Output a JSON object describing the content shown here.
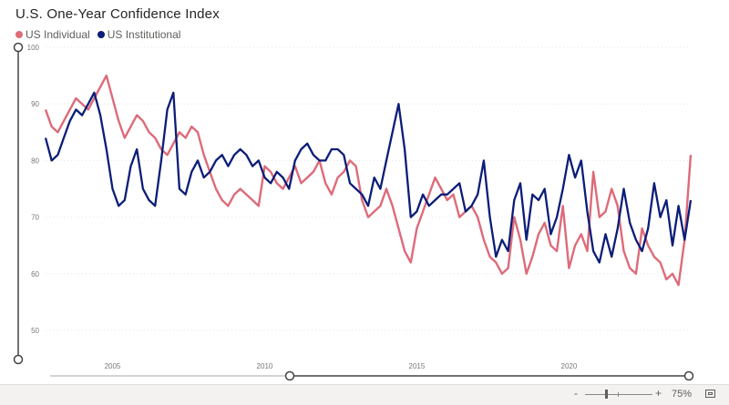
{
  "chart_data": {
    "type": "line",
    "title": "U.S. One-Year Confidence Index",
    "xlabel": "",
    "ylabel": "",
    "x_range": [
      2002.8,
      2024.0
    ],
    "xticks": [
      2005,
      2010,
      2015,
      2020
    ],
    "ylim": [
      45,
      100
    ],
    "yticks": [
      50,
      60,
      70,
      80,
      90,
      100
    ],
    "grid": true,
    "legend_position": "top-left",
    "series": [
      {
        "name": "US Individual",
        "color": "#dd6b7a",
        "x": [
          2002.8,
          2003.0,
          2003.2,
          2003.4,
          2003.6,
          2003.8,
          2004.0,
          2004.2,
          2004.4,
          2004.6,
          2004.8,
          2005.0,
          2005.2,
          2005.4,
          2005.6,
          2005.8,
          2006.0,
          2006.2,
          2006.4,
          2006.6,
          2006.8,
          2007.0,
          2007.2,
          2007.4,
          2007.6,
          2007.8,
          2008.0,
          2008.2,
          2008.4,
          2008.6,
          2008.8,
          2009.0,
          2009.2,
          2009.4,
          2009.6,
          2009.8,
          2010.0,
          2010.2,
          2010.4,
          2010.6,
          2010.8,
          2011.0,
          2011.2,
          2011.4,
          2011.6,
          2011.8,
          2012.0,
          2012.2,
          2012.4,
          2012.6,
          2012.8,
          2013.0,
          2013.2,
          2013.4,
          2013.6,
          2013.8,
          2014.0,
          2014.2,
          2014.4,
          2014.6,
          2014.8,
          2015.0,
          2015.2,
          2015.4,
          2015.6,
          2015.8,
          2016.0,
          2016.2,
          2016.4,
          2016.6,
          2016.8,
          2017.0,
          2017.2,
          2017.4,
          2017.6,
          2017.8,
          2018.0,
          2018.2,
          2018.4,
          2018.6,
          2018.8,
          2019.0,
          2019.2,
          2019.4,
          2019.6,
          2019.8,
          2020.0,
          2020.2,
          2020.4,
          2020.6,
          2020.8,
          2021.0,
          2021.2,
          2021.4,
          2021.6,
          2021.8,
          2022.0,
          2022.2,
          2022.4,
          2022.6,
          2022.8,
          2023.0,
          2023.2,
          2023.4,
          2023.6,
          2023.8,
          2024.0
        ],
        "values": [
          89,
          86,
          85,
          87,
          89,
          91,
          90,
          89,
          91,
          93,
          95,
          91,
          87,
          84,
          86,
          88,
          87,
          85,
          84,
          82,
          81,
          83,
          85,
          84,
          86,
          85,
          81,
          78,
          75,
          73,
          72,
          74,
          75,
          74,
          73,
          72,
          79,
          78,
          76,
          75,
          77,
          79,
          76,
          77,
          78,
          80,
          76,
          74,
          77,
          78,
          80,
          79,
          73,
          70,
          71,
          72,
          75,
          72,
          68,
          64,
          62,
          68,
          71,
          74,
          77,
          75,
          73,
          74,
          70,
          71,
          72,
          70,
          66,
          63,
          62,
          60,
          61,
          70,
          66,
          60,
          63,
          67,
          69,
          65,
          64,
          72,
          61,
          65,
          67,
          64,
          78,
          70,
          71,
          75,
          72,
          64,
          61,
          60,
          68,
          65,
          63,
          62,
          59,
          60,
          58,
          66,
          81
        ]
      },
      {
        "name": "US Institutional",
        "color": "#0b1d78",
        "x": [
          2002.8,
          2003.0,
          2003.2,
          2003.4,
          2003.6,
          2003.8,
          2004.0,
          2004.2,
          2004.4,
          2004.6,
          2004.8,
          2005.0,
          2005.2,
          2005.4,
          2005.6,
          2005.8,
          2006.0,
          2006.2,
          2006.4,
          2006.6,
          2006.8,
          2007.0,
          2007.2,
          2007.4,
          2007.6,
          2007.8,
          2008.0,
          2008.2,
          2008.4,
          2008.6,
          2008.8,
          2009.0,
          2009.2,
          2009.4,
          2009.6,
          2009.8,
          2010.0,
          2010.2,
          2010.4,
          2010.6,
          2010.8,
          2011.0,
          2011.2,
          2011.4,
          2011.6,
          2011.8,
          2012.0,
          2012.2,
          2012.4,
          2012.6,
          2012.8,
          2013.0,
          2013.2,
          2013.4,
          2013.6,
          2013.8,
          2014.0,
          2014.2,
          2014.4,
          2014.6,
          2014.8,
          2015.0,
          2015.2,
          2015.4,
          2015.6,
          2015.8,
          2016.0,
          2016.2,
          2016.4,
          2016.6,
          2016.8,
          2017.0,
          2017.2,
          2017.4,
          2017.6,
          2017.8,
          2018.0,
          2018.2,
          2018.4,
          2018.6,
          2018.8,
          2019.0,
          2019.2,
          2019.4,
          2019.6,
          2019.8,
          2020.0,
          2020.2,
          2020.4,
          2020.6,
          2020.8,
          2021.0,
          2021.2,
          2021.4,
          2021.6,
          2021.8,
          2022.0,
          2022.2,
          2022.4,
          2022.6,
          2022.8,
          2023.0,
          2023.2,
          2023.4,
          2023.6,
          2023.8,
          2024.0
        ],
        "values": [
          84,
          80,
          81,
          84,
          87,
          89,
          88,
          90,
          92,
          88,
          82,
          75,
          72,
          73,
          79,
          82,
          75,
          73,
          72,
          80,
          89,
          92,
          75,
          74,
          78,
          80,
          77,
          78,
          80,
          81,
          79,
          81,
          82,
          81,
          79,
          80,
          77,
          76,
          78,
          77,
          75,
          80,
          82,
          83,
          81,
          80,
          80,
          82,
          82,
          81,
          76,
          75,
          74,
          72,
          77,
          75,
          80,
          85,
          90,
          82,
          70,
          71,
          74,
          72,
          73,
          74,
          74,
          75,
          76,
          71,
          72,
          74,
          80,
          70,
          63,
          66,
          64,
          73,
          76,
          66,
          74,
          73,
          75,
          67,
          70,
          75,
          81,
          77,
          80,
          71,
          64,
          62,
          67,
          63,
          68,
          75,
          69,
          66,
          64,
          68,
          76,
          70,
          73,
          65,
          72,
          66,
          73
        ]
      }
    ]
  },
  "statusbar": {
    "zoom_minus": "-",
    "zoom_plus": "+",
    "zoom_level": "75%",
    "zoom_value_pct": 75
  }
}
